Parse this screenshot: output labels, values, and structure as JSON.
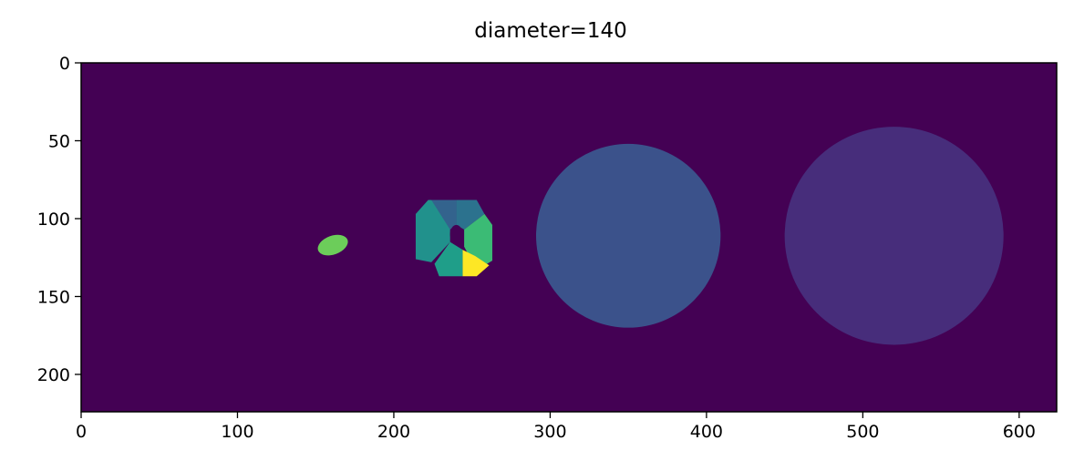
{
  "chart_data": {
    "type": "heatmap",
    "title": "diameter=140",
    "xlabel": "",
    "ylabel": "",
    "xlim": [
      0,
      624
    ],
    "ylim": [
      224,
      0
    ],
    "xticks": [
      0,
      100,
      200,
      300,
      400,
      500,
      600
    ],
    "yticks": [
      0,
      50,
      100,
      150,
      200
    ],
    "grid": false,
    "colormap": "viridis",
    "background_color": "#440154",
    "regions": [
      {
        "label": "small-blob",
        "shape": "blob",
        "cx": 161,
        "cy": 117,
        "rx": 10,
        "ry": 6,
        "color": "#6ccd5a"
      },
      {
        "label": "segmented-ring-left",
        "shape": "polygon",
        "color": "#21918c",
        "points": [
          [
            214,
            97
          ],
          [
            222,
            88
          ],
          [
            236,
            88
          ],
          [
            236,
            115
          ],
          [
            224,
            128
          ],
          [
            214,
            126
          ]
        ]
      },
      {
        "label": "segmented-ring-top",
        "shape": "polygon",
        "color": "#33638d",
        "points": [
          [
            224,
            88
          ],
          [
            240,
            88
          ],
          [
            240,
            104
          ],
          [
            236,
            107
          ]
        ]
      },
      {
        "label": "segmented-ring-top-right",
        "shape": "polygon",
        "color": "#2c728e",
        "points": [
          [
            240,
            88
          ],
          [
            253,
            88
          ],
          [
            258,
            97
          ],
          [
            245,
            107
          ],
          [
            240,
            104
          ]
        ]
      },
      {
        "label": "segmented-ring-right",
        "shape": "polygon",
        "color": "#3bbb75",
        "points": [
          [
            258,
            97
          ],
          [
            263,
            104
          ],
          [
            263,
            127
          ],
          [
            253,
            133
          ],
          [
            245,
            118
          ],
          [
            245,
            107
          ]
        ]
      },
      {
        "label": "segmented-ring-bottom-right",
        "shape": "polygon",
        "color": "#fde725",
        "points": [
          [
            244,
            120
          ],
          [
            252,
            124
          ],
          [
            261,
            130
          ],
          [
            253,
            137
          ],
          [
            244,
            137
          ]
        ]
      },
      {
        "label": "segmented-ring-bottom",
        "shape": "polygon",
        "color": "#1f9e89",
        "points": [
          [
            236,
            115
          ],
          [
            244,
            120
          ],
          [
            244,
            137
          ],
          [
            229,
            137
          ],
          [
            226,
            129
          ]
        ]
      },
      {
        "label": "large-circle-1",
        "shape": "circle",
        "cx": 350,
        "cy": 111,
        "r": 59,
        "color": "#3b528b"
      },
      {
        "label": "large-circle-2",
        "shape": "circle",
        "cx": 520,
        "cy": 111,
        "r": 70,
        "color": "#472d7b"
      }
    ]
  }
}
